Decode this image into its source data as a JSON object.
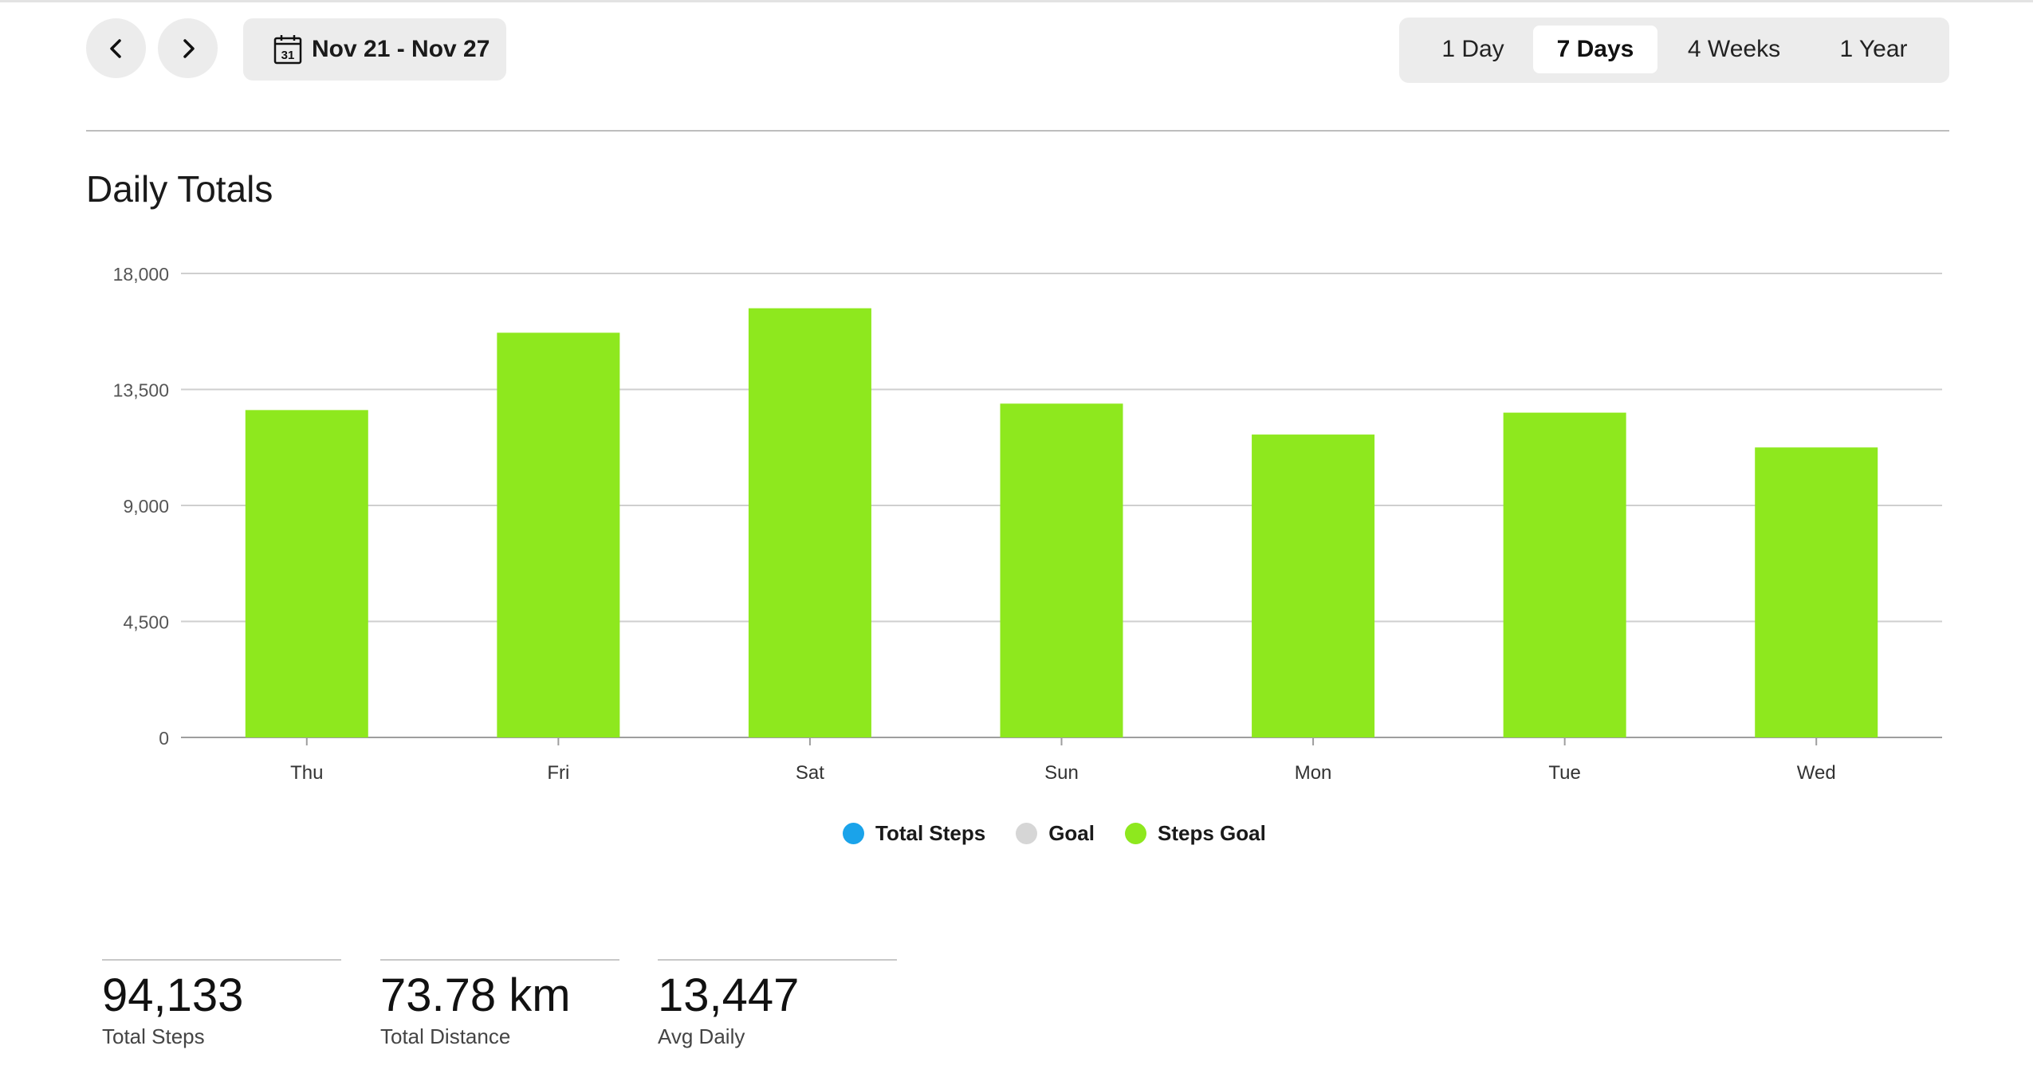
{
  "header": {
    "prev_icon": "chevron-left-icon",
    "next_icon": "chevron-right-icon",
    "calendar_icon": "calendar-icon",
    "calendar_day": "31",
    "date_range": "Nov 21 - Nov 27",
    "ranges": [
      "1 Day",
      "7 Days",
      "4 Weeks",
      "1 Year"
    ],
    "active_range": "7 Days"
  },
  "section_title": "Daily Totals",
  "chart_data": {
    "type": "bar",
    "title": "Daily Totals",
    "categories": [
      "Thu",
      "Fri",
      "Sat",
      "Sun",
      "Mon",
      "Tue",
      "Wed"
    ],
    "series": [
      {
        "name": "Steps Goal",
        "color": "#8ee81e",
        "values": [
          12700,
          15700,
          16650,
          12950,
          11750,
          12600,
          11250
        ]
      }
    ],
    "yticks": [
      0,
      4500,
      9000,
      13500,
      18000
    ],
    "ytick_labels": [
      "0",
      "4,500",
      "9,000",
      "13,500",
      "18,000"
    ],
    "ylim": [
      0,
      18000
    ],
    "grid": true,
    "legend_position": "bottom-center"
  },
  "legend": [
    {
      "label": "Total Steps",
      "color": "#1aa3ea"
    },
    {
      "label": "Goal",
      "color": "#d6d6d6"
    },
    {
      "label": "Steps Goal",
      "color": "#8ee81e"
    }
  ],
  "stats": [
    {
      "value": "94,133",
      "label": "Total Steps"
    },
    {
      "value": "73.78 km",
      "label": "Total Distance"
    },
    {
      "value": "13,447",
      "label": "Avg Daily"
    }
  ]
}
